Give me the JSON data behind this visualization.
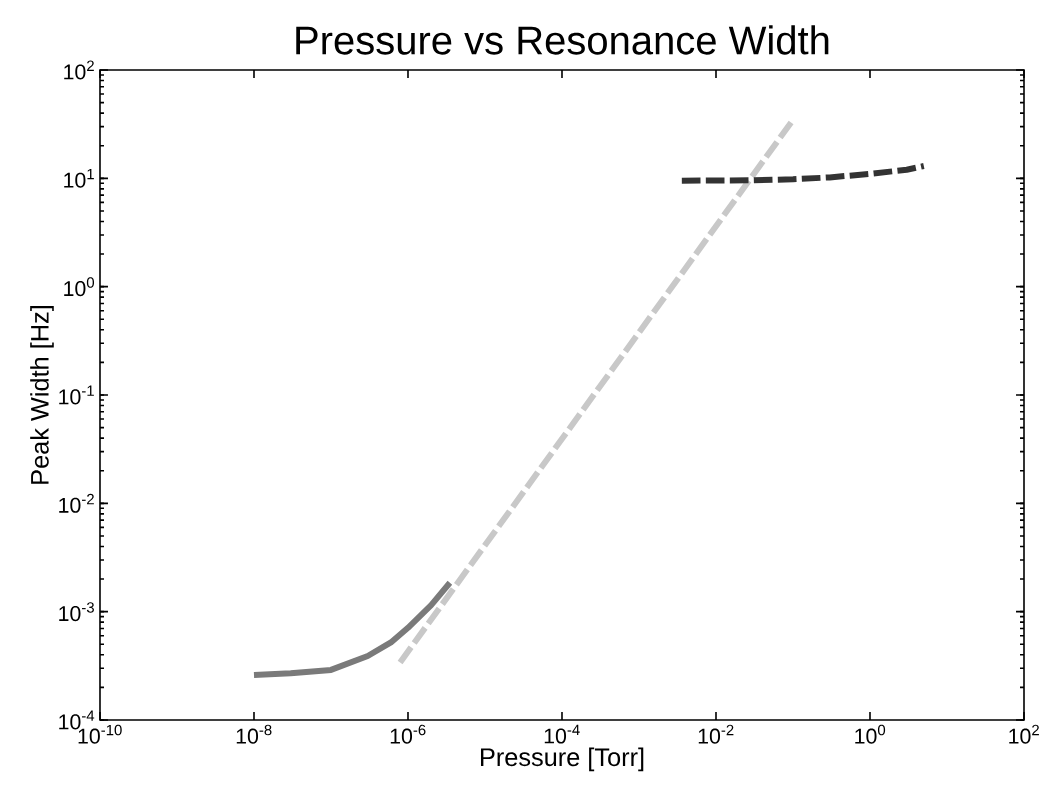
{
  "chart_data": {
    "type": "line",
    "title": "Pressure vs Resonance Width",
    "xlabel": "Pressure [Torr]",
    "ylabel": "Peak Width [Hz]",
    "log": "xy",
    "grid": false,
    "marker": "none",
    "xlim": [
      1e-10,
      100
    ],
    "ylim": [
      0.0001,
      100
    ],
    "xticks": [
      {
        "value": 1e-10,
        "label": "10$^{-10}$"
      },
      {
        "value": 1e-08,
        "label": "10$^{-8}$"
      },
      {
        "value": 1e-06,
        "label": "10$^{-6}$"
      },
      {
        "value": 0.0001,
        "label": "10$^{-4}$"
      },
      {
        "value": 0.01,
        "label": "10$^{-2}$"
      },
      {
        "value": 1,
        "label": "10$^{0}$"
      },
      {
        "value": 100,
        "label": "10$^{2}$"
      }
    ],
    "yticks": [
      {
        "value": 0.0001,
        "label": "10$^{-4}$"
      },
      {
        "value": 0.001,
        "label": "10$^{-3}$"
      },
      {
        "value": 0.01,
        "label": "10$^{-2}$"
      },
      {
        "value": 0.1,
        "label": "10$^{-1}$"
      },
      {
        "value": 1,
        "label": "10$^{0}$"
      },
      {
        "value": 10,
        "label": "10$^{1}$"
      },
      {
        "value": 100,
        "label": "10$^{2}$"
      }
    ],
    "series": [
      {
        "color": "#7a7a7a",
        "line_style": "solid",
        "x": [
          1e-08,
          3e-08,
          1e-07,
          3e-07,
          6e-07,
          1e-06,
          2e-06,
          3.5e-06
        ],
        "values": [
          0.00026,
          0.00027,
          0.00029,
          0.00039,
          0.00052,
          0.00071,
          0.00115,
          0.00185
        ]
      },
      {
        "color": "#c8c8c8",
        "line_style": "dashed",
        "x": [
          7.9e-07,
          0.098
        ],
        "values": [
          0.00034,
          34
        ]
      },
      {
        "color": "#333333",
        "line_style": "dashed",
        "x": [
          0.0036,
          0.03,
          0.1,
          0.3,
          1,
          3,
          5
        ],
        "values": [
          9.5,
          9.6,
          9.8,
          10.2,
          11,
          12,
          13
        ]
      }
    ]
  }
}
